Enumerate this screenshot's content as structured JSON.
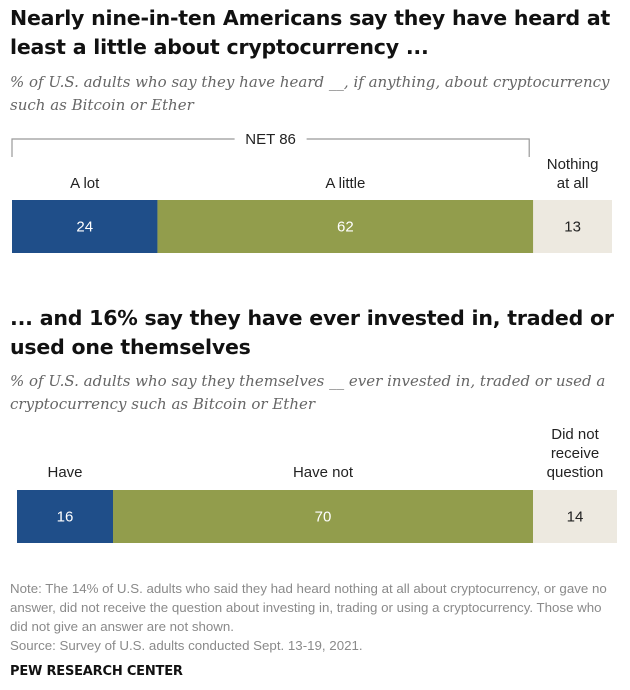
{
  "chart_data": [
    {
      "type": "bar",
      "orientation": "horizontal-stacked",
      "title": "Nearly nine-in-ten Americans say they have heard at least a little about cryptocurrency ...",
      "subtitle": "% of U.S. adults who say they have heard __, if anything, about cryptocurrency such as Bitcoin or Ether",
      "net_label": "NET 86",
      "segments": [
        {
          "label": "A lot",
          "value": 24,
          "color": "#1f4e89",
          "text_color": "#ffffff"
        },
        {
          "label": "A little",
          "value": 62,
          "color": "#929d4c",
          "text_color": "#ffffff"
        },
        {
          "label": "Nothing at all",
          "value": 13,
          "color": "#ede9e0",
          "text_color": "#222222"
        }
      ]
    },
    {
      "type": "bar",
      "orientation": "horizontal-stacked",
      "title": "... and 16% say they have ever invested in, traded or used one themselves",
      "subtitle": "% of U.S. adults who say they themselves __ ever invested in, traded or used a cryptocurrency such as Bitcoin or Ether",
      "segments": [
        {
          "label": "Have",
          "value": 16,
          "color": "#1f4e89",
          "text_color": "#ffffff"
        },
        {
          "label": "Have not",
          "value": 70,
          "color": "#929d4c",
          "text_color": "#ffffff"
        },
        {
          "label": "Did not receive question",
          "value": 14,
          "color": "#ede9e0",
          "text_color": "#222222"
        }
      ]
    }
  ],
  "footer": {
    "note": "Note: The 14% of U.S. adults who said they had heard nothing at all about cryptocurrency, or gave no answer, did not receive the question about investing in, trading or using a cryptocurrency. Those who did not give an answer are not shown.",
    "source": "Source: Survey of U.S. adults conducted Sept. 13-19, 2021.",
    "organization": "PEW RESEARCH CENTER"
  }
}
